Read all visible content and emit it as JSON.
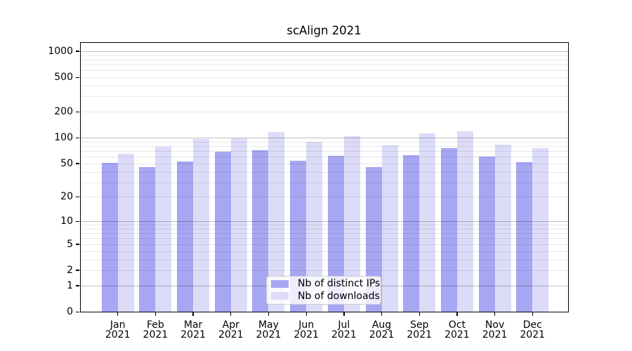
{
  "figure": {
    "background_color": "#ffffff",
    "text_color": "#000000"
  },
  "chart_data": {
    "type": "bar",
    "title": "scAlign 2021",
    "xlabel": "",
    "ylabel": "",
    "yscale": "log(1+x)",
    "yticks": [
      0,
      1,
      2,
      5,
      10,
      20,
      50,
      100,
      200,
      500,
      1000
    ],
    "ylim": [
      0,
      1285
    ],
    "grid": "horizontal major and minor gridlines, drawn over bars",
    "legend_position": "lower center",
    "categories": [
      "Jan 2021",
      "Feb 2021",
      "Mar 2021",
      "Apr 2021",
      "May 2021",
      "Jun 2021",
      "Jul 2021",
      "Aug 2021",
      "Sep 2021",
      "Oct 2021",
      "Nov 2021",
      "Dec 2021"
    ],
    "series": [
      {
        "name": "Nb of distinct IPs",
        "color": "#a6a6f2",
        "values": [
          51,
          45,
          53,
          69,
          71,
          54,
          61,
          45,
          62,
          75,
          60,
          52
        ]
      },
      {
        "name": "Nb of downloads",
        "color": "#dcdcf8",
        "values": [
          65,
          78,
          97,
          99,
          116,
          90,
          105,
          81,
          112,
          118,
          83,
          76
        ]
      }
    ],
    "colors": {
      "major_gridline": "rgba(0,0,0,0.25)",
      "minor_gridline": "rgba(0,0,0,0.09)",
      "axis_spine": "#000000",
      "legend_border": "#cccccc"
    }
  }
}
